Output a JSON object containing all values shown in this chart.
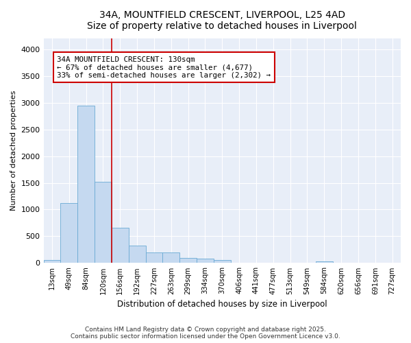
{
  "title_line1": "34A, MOUNTFIELD CRESCENT, LIVERPOOL, L25 4AD",
  "title_line2": "Size of property relative to detached houses in Liverpool",
  "xlabel": "Distribution of detached houses by size in Liverpool",
  "ylabel": "Number of detached properties",
  "bar_labels": [
    "13sqm",
    "49sqm",
    "84sqm",
    "120sqm",
    "156sqm",
    "192sqm",
    "227sqm",
    "263sqm",
    "299sqm",
    "334sqm",
    "370sqm",
    "406sqm",
    "441sqm",
    "477sqm",
    "513sqm",
    "549sqm",
    "584sqm",
    "620sqm",
    "656sqm",
    "691sqm",
    "727sqm"
  ],
  "bar_values": [
    60,
    1120,
    2950,
    1520,
    660,
    330,
    200,
    200,
    90,
    80,
    55,
    10,
    10,
    5,
    5,
    5,
    30,
    5,
    5,
    5,
    5
  ],
  "bar_color": "#c5d9f0",
  "bar_edge_color": "#6aaad4",
  "fig_background": "#ffffff",
  "plot_background": "#e8eef8",
  "grid_color": "#ffffff",
  "vline_x": 3.5,
  "vline_color": "#cc0000",
  "annotation_text": "34A MOUNTFIELD CRESCENT: 130sqm\n← 67% of detached houses are smaller (4,677)\n33% of semi-detached houses are larger (2,302) →",
  "annotation_box_color": "#ffffff",
  "annotation_box_edge": "#cc0000",
  "ylim": [
    0,
    4200
  ],
  "yticks": [
    0,
    500,
    1000,
    1500,
    2000,
    2500,
    3000,
    3500,
    4000
  ],
  "footer_line1": "Contains HM Land Registry data © Crown copyright and database right 2025.",
  "footer_line2": "Contains public sector information licensed under the Open Government Licence v3.0."
}
